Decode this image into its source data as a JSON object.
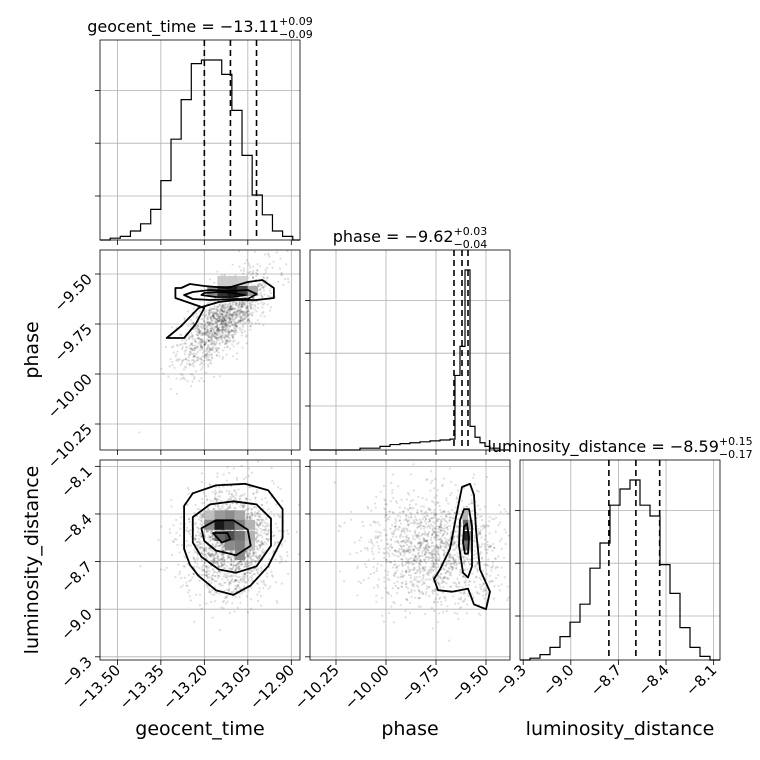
{
  "chart_data": {
    "type": "corner",
    "parameters": [
      "geocent_time",
      "phase",
      "luminosity_distance"
    ],
    "titles": {
      "geocent_time": {
        "prefix": "geocent_time = ",
        "value": "−13.11",
        "plus": "+0.09",
        "minus": "−0.09"
      },
      "phase": {
        "prefix": "phase = ",
        "value": "−9.62",
        "plus": "+0.03",
        "minus": "−0.04"
      },
      "luminosity_distance": {
        "prefix": "luminosity_distance = ",
        "value": "−8.59",
        "plus": "+0.15",
        "minus": "−0.17"
      }
    },
    "axis_labels": {
      "geocent_time": "geocent_time",
      "phase": "phase",
      "luminosity_distance": "luminosity_distance"
    },
    "ranges": {
      "geocent_time": [
        -13.56,
        -12.87
      ],
      "phase": [
        -10.38,
        -9.38
      ],
      "luminosity_distance": [
        -9.32,
        -8.06
      ]
    },
    "ticks": {
      "geocent_time": {
        "values": [
          -13.5,
          -13.35,
          -13.2,
          -13.05,
          -12.9
        ],
        "labels": [
          "−13.50",
          "−13.35",
          "−13.20",
          "−13.05",
          "−12.90"
        ]
      },
      "phase": {
        "values": [
          -10.25,
          -10.0,
          -9.75,
          -9.5
        ],
        "labels": [
          "−10.25",
          "−10.00",
          "−9.75",
          "−9.50"
        ]
      },
      "luminosity_distance": {
        "values": [
          -9.3,
          -9.0,
          -8.7,
          -8.4,
          -8.1
        ],
        "labels": [
          "−9.3",
          "−9.0",
          "−8.7",
          "−8.4",
          "−8.1"
        ]
      }
    },
    "quantiles": {
      "geocent_time": [
        -13.2,
        -13.11,
        -13.02
      ],
      "phase": [
        -9.66,
        -9.62,
        -9.59
      ],
      "luminosity_distance": [
        -8.76,
        -8.59,
        -8.44
      ]
    },
    "histograms": {
      "geocent_time": {
        "edges": [
          -13.56,
          -13.525,
          -13.49,
          -13.455,
          -13.42,
          -13.385,
          -13.35,
          -13.315,
          -13.28,
          -13.245,
          -13.21,
          -13.175,
          -13.14,
          -13.105,
          -13.07,
          -13.035,
          -13.0,
          -12.965,
          -12.93,
          -12.895,
          -12.87
        ],
        "counts": [
          0,
          1,
          2,
          5,
          9,
          17,
          33,
          56,
          78,
          98,
          100,
          100,
          92,
          72,
          47,
          25,
          14,
          5,
          2,
          0
        ]
      },
      "phase": {
        "edges": [
          -10.38,
          -10.33,
          -10.28,
          -10.23,
          -10.18,
          -10.13,
          -10.08,
          -10.03,
          -9.98,
          -9.93,
          -9.88,
          -9.83,
          -9.78,
          -9.73,
          -9.68,
          -9.655,
          -9.63,
          -9.605,
          -9.58,
          -9.555,
          -9.53,
          -9.505,
          -9.48,
          -9.43,
          -9.38
        ],
        "counts": [
          0,
          0,
          0,
          0,
          0,
          1,
          1,
          2,
          3,
          3.5,
          4,
          4.5,
          5,
          5.5,
          6,
          41,
          57,
          99,
          13,
          7,
          4,
          2,
          1,
          0
        ]
      },
      "luminosity_distance": {
        "edges": [
          -9.32,
          -9.257,
          -9.194,
          -9.131,
          -9.068,
          -9.005,
          -8.942,
          -8.879,
          -8.816,
          -8.753,
          -8.69,
          -8.627,
          -8.564,
          -8.501,
          -8.438,
          -8.375,
          -8.312,
          -8.249,
          -8.186,
          -8.123,
          -8.06
        ],
        "counts": [
          0,
          1,
          3,
          7,
          13,
          21,
          31,
          51,
          65,
          86,
          95,
          100,
          86,
          80,
          53,
          37,
          18,
          7,
          2,
          0
        ]
      }
    },
    "contours": {
      "phase_vs_geocent_time": [
        {
          "x": [
            -13.28,
            -13.25,
            -13.2,
            -13.12,
            -13.05,
            -13.0,
            -12.96,
            -12.96,
            -13.02,
            -13.09,
            -13.15,
            -13.22,
            -13.28,
            -13.33,
            -13.27,
            -13.23,
            -13.2,
            -13.24,
            -13.3,
            -13.3
          ],
          "y": [
            -9.57,
            -9.55,
            -9.56,
            -9.57,
            -9.54,
            -9.53,
            -9.57,
            -9.62,
            -9.63,
            -9.63,
            -9.64,
            -9.67,
            -9.76,
            -9.82,
            -9.82,
            -9.75,
            -9.67,
            -9.65,
            -9.62,
            -9.57
          ]
        },
        {
          "x": [
            -13.24,
            -13.18,
            -13.11,
            -13.05,
            -13.02,
            -13.05,
            -13.1,
            -13.18,
            -13.24,
            -13.27,
            -13.24
          ],
          "y": [
            -9.59,
            -9.58,
            -9.585,
            -9.58,
            -9.6,
            -9.625,
            -9.625,
            -9.63,
            -9.625,
            -9.605,
            -9.59
          ]
        },
        {
          "x": [
            -13.2,
            -13.15,
            -13.1,
            -13.06,
            -13.1,
            -13.16,
            -13.21,
            -13.2
          ],
          "y": [
            -9.595,
            -9.59,
            -9.595,
            -9.605,
            -9.615,
            -9.615,
            -9.605,
            -9.595
          ]
        }
      ],
      "luminosity_distance_vs_geocent_time": [
        {
          "x": [
            -13.27,
            -13.24,
            -13.16,
            -13.06,
            -12.98,
            -12.93,
            -12.93,
            -12.98,
            -13.04,
            -13.1,
            -13.16,
            -13.22,
            -13.25,
            -13.27,
            -13.27
          ],
          "y": [
            -8.35,
            -8.27,
            -8.22,
            -8.21,
            -8.25,
            -8.37,
            -8.55,
            -8.73,
            -8.85,
            -8.91,
            -8.88,
            -8.79,
            -8.72,
            -8.62,
            -8.35
          ]
        },
        {
          "x": [
            -13.24,
            -13.18,
            -13.1,
            -13.02,
            -12.97,
            -12.97,
            -13.02,
            -13.09,
            -13.15,
            -13.21,
            -13.24,
            -13.24
          ],
          "y": [
            -8.42,
            -8.34,
            -8.32,
            -8.34,
            -8.43,
            -8.6,
            -8.73,
            -8.77,
            -8.75,
            -8.67,
            -8.58,
            -8.42
          ]
        },
        {
          "x": [
            -13.21,
            -13.16,
            -13.1,
            -13.05,
            -13.04,
            -13.09,
            -13.16,
            -13.2,
            -13.21
          ],
          "y": [
            -8.49,
            -8.44,
            -8.44,
            -8.5,
            -8.6,
            -8.66,
            -8.63,
            -8.57,
            -8.49
          ]
        },
        {
          "x": [
            -13.17,
            -13.12,
            -13.11,
            -13.14,
            -13.17
          ],
          "y": [
            -8.52,
            -8.52,
            -8.56,
            -8.58,
            -8.52
          ]
        }
      ],
      "luminosity_distance_vs_phase": [
        {
          "x": [
            -9.73,
            -9.68,
            -9.65,
            -9.62,
            -9.58,
            -9.56,
            -9.55,
            -9.53,
            -9.48,
            -9.5,
            -9.56,
            -9.59,
            -9.63,
            -9.67,
            -9.74,
            -9.76,
            -9.73
          ],
          "y": [
            -8.75,
            -8.62,
            -8.42,
            -8.23,
            -8.21,
            -8.28,
            -8.5,
            -8.75,
            -8.89,
            -9.0,
            -8.97,
            -8.87,
            -8.88,
            -8.89,
            -8.88,
            -8.81,
            -8.75
          ]
        },
        {
          "x": [
            -9.63,
            -9.61,
            -9.585,
            -9.57,
            -9.57,
            -9.59,
            -9.615,
            -9.635,
            -9.63
          ],
          "y": [
            -8.44,
            -8.37,
            -8.37,
            -8.48,
            -8.73,
            -8.8,
            -8.77,
            -8.6,
            -8.44
          ]
        },
        {
          "x": [
            -9.61,
            -9.595,
            -9.585,
            -9.59,
            -9.605,
            -9.615,
            -9.61
          ],
          "y": [
            -8.48,
            -8.46,
            -8.55,
            -8.65,
            -8.65,
            -8.58,
            -8.48
          ]
        }
      ]
    },
    "density_cells": {
      "phase_vs_geocent_time": [
        {
          "x": -13.19,
          "y": -9.61,
          "w": 0.035,
          "h": 0.05,
          "v": 0.45
        },
        {
          "x": -13.155,
          "y": -9.61,
          "w": 0.035,
          "h": 0.05,
          "v": 0.8
        },
        {
          "x": -13.12,
          "y": -9.61,
          "w": 0.035,
          "h": 0.05,
          "v": 0.9
        },
        {
          "x": -13.085,
          "y": -9.61,
          "w": 0.035,
          "h": 0.05,
          "v": 0.75
        },
        {
          "x": -13.05,
          "y": -9.61,
          "w": 0.035,
          "h": 0.05,
          "v": 0.35
        },
        {
          "x": -13.155,
          "y": -9.56,
          "w": 0.035,
          "h": 0.05,
          "v": 0.2
        },
        {
          "x": -13.12,
          "y": -9.56,
          "w": 0.035,
          "h": 0.05,
          "v": 0.2
        },
        {
          "x": -13.085,
          "y": -9.56,
          "w": 0.035,
          "h": 0.05,
          "v": 0.18
        }
      ],
      "luminosity_distance_vs_geocent_time": [
        {
          "x": -13.2,
          "y": -8.44,
          "w": 0.035,
          "h": 0.063,
          "v": 0.25
        },
        {
          "x": -13.165,
          "y": -8.44,
          "w": 0.035,
          "h": 0.063,
          "v": 0.4
        },
        {
          "x": -13.13,
          "y": -8.44,
          "w": 0.035,
          "h": 0.063,
          "v": 0.45
        },
        {
          "x": -13.095,
          "y": -8.44,
          "w": 0.035,
          "h": 0.063,
          "v": 0.35
        },
        {
          "x": -13.2,
          "y": -8.5,
          "w": 0.035,
          "h": 0.063,
          "v": 0.45
        },
        {
          "x": -13.165,
          "y": -8.5,
          "w": 0.035,
          "h": 0.063,
          "v": 0.9
        },
        {
          "x": -13.13,
          "y": -8.5,
          "w": 0.035,
          "h": 0.063,
          "v": 0.75
        },
        {
          "x": -13.095,
          "y": -8.5,
          "w": 0.035,
          "h": 0.063,
          "v": 0.5
        },
        {
          "x": -13.06,
          "y": -8.5,
          "w": 0.035,
          "h": 0.063,
          "v": 0.3
        },
        {
          "x": -13.165,
          "y": -8.57,
          "w": 0.035,
          "h": 0.063,
          "v": 0.6
        },
        {
          "x": -13.13,
          "y": -8.57,
          "w": 0.035,
          "h": 0.063,
          "v": 0.7
        },
        {
          "x": -13.095,
          "y": -8.57,
          "w": 0.035,
          "h": 0.063,
          "v": 0.55
        },
        {
          "x": -13.06,
          "y": -8.57,
          "w": 0.035,
          "h": 0.063,
          "v": 0.3
        },
        {
          "x": -13.13,
          "y": -8.63,
          "w": 0.035,
          "h": 0.063,
          "v": 0.45
        },
        {
          "x": -13.095,
          "y": -8.63,
          "w": 0.035,
          "h": 0.063,
          "v": 0.5
        },
        {
          "x": -13.095,
          "y": -8.69,
          "w": 0.035,
          "h": 0.063,
          "v": 0.45
        },
        {
          "x": -13.06,
          "y": -8.63,
          "w": 0.035,
          "h": 0.063,
          "v": 0.25
        }
      ],
      "luminosity_distance_vs_phase": [
        {
          "x": -9.615,
          "y": -8.44,
          "w": 0.025,
          "h": 0.063,
          "v": 0.3
        },
        {
          "x": -9.615,
          "y": -8.5,
          "w": 0.025,
          "h": 0.063,
          "v": 0.6
        },
        {
          "x": -9.615,
          "y": -8.57,
          "w": 0.025,
          "h": 0.063,
          "v": 0.85
        },
        {
          "x": -9.615,
          "y": -8.63,
          "w": 0.025,
          "h": 0.063,
          "v": 0.55
        },
        {
          "x": -9.59,
          "y": -8.5,
          "w": 0.025,
          "h": 0.063,
          "v": 0.3
        },
        {
          "x": -9.59,
          "y": -8.57,
          "w": 0.025,
          "h": 0.063,
          "v": 0.45
        },
        {
          "x": -9.59,
          "y": -8.63,
          "w": 0.025,
          "h": 0.063,
          "v": 0.25
        }
      ]
    },
    "scatter_seed": 20240611
  }
}
